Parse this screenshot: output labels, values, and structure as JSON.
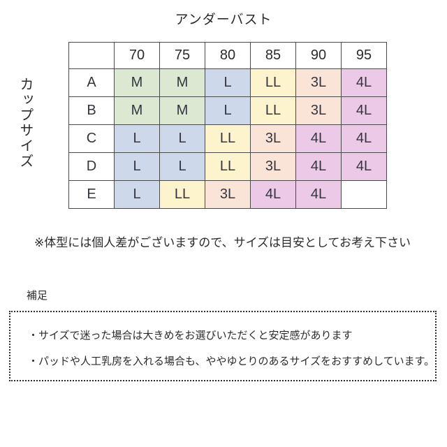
{
  "title": "アンダーバスト",
  "side_label": "カップサイズ",
  "note": "※体型には個人差がございますので、サイズは目安としてお考え下さい",
  "supplement": {
    "label": "補足",
    "bullets": [
      "・サイズで迷った場合は大きめをお選びいただくと安定感があります",
      "・パッドや人工乳房を入れる場合も、ややゆとりのあるサイズをおすすめしています。"
    ]
  },
  "size_colors": {
    "M": "#dbe8d2",
    "L": "#cdd8ea",
    "LL": "#fdf3cc",
    "3L": "#fae3d7",
    "4L": "#eccae7"
  },
  "border_color": "#4a4a4a",
  "chart_data": {
    "type": "table",
    "title": "アンダーバスト",
    "row_header_label": "カップサイズ",
    "columns": [
      "",
      "70",
      "75",
      "80",
      "85",
      "90",
      "95"
    ],
    "rows": [
      {
        "cup": "A",
        "cells": [
          "M",
          "M",
          "L",
          "LL",
          "3L",
          "4L"
        ]
      },
      {
        "cup": "B",
        "cells": [
          "M",
          "M",
          "L",
          "LL",
          "3L",
          "4L"
        ]
      },
      {
        "cup": "C",
        "cells": [
          "L",
          "L",
          "LL",
          "3L",
          "4L",
          "4L"
        ]
      },
      {
        "cup": "D",
        "cells": [
          "L",
          "L",
          "LL",
          "3L",
          "4L",
          "4L"
        ]
      },
      {
        "cup": "E",
        "cells": [
          "L",
          "LL",
          "3L",
          "4L",
          "4L",
          ""
        ]
      }
    ],
    "legend": "cell value = recommended garment size (M/L/LL/3L/4L), colored by size"
  }
}
